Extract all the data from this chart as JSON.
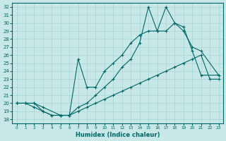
{
  "xlabel": "Humidex (Indice chaleur)",
  "background_color": "#c8e8e8",
  "line_color": "#006666",
  "grid_color": "#a8d4d4",
  "xlim": [
    -0.5,
    23.5
  ],
  "ylim": [
    17.5,
    32.5
  ],
  "xticks": [
    0,
    1,
    2,
    3,
    4,
    5,
    6,
    7,
    8,
    9,
    10,
    11,
    12,
    13,
    14,
    15,
    16,
    17,
    18,
    19,
    20,
    21,
    22,
    23
  ],
  "yticks": [
    18,
    19,
    20,
    21,
    22,
    23,
    24,
    25,
    26,
    27,
    28,
    29,
    30,
    31,
    32
  ],
  "line1_x": [
    0,
    1,
    2,
    3,
    4,
    5,
    6,
    7,
    8,
    9,
    10,
    11,
    12,
    13,
    14,
    15,
    16,
    17,
    18,
    19,
    20,
    21,
    22,
    23
  ],
  "line1_y": [
    20.0,
    20.0,
    20.0,
    19.0,
    18.5,
    18.5,
    18.5,
    19.0,
    19.5,
    20.0,
    20.5,
    21.0,
    21.5,
    22.0,
    22.5,
    23.0,
    23.5,
    24.0,
    24.5,
    25.0,
    25.5,
    26.0,
    23.0,
    23.0
  ],
  "line2_x": [
    0,
    1,
    2,
    3,
    5,
    6,
    7,
    8,
    9,
    10,
    11,
    12,
    13,
    14,
    15,
    16,
    17,
    18,
    19,
    20,
    21,
    23
  ],
  "line2_y": [
    20.0,
    20.0,
    20.0,
    19.5,
    18.5,
    18.5,
    25.5,
    22.0,
    22.0,
    24.0,
    25.0,
    26.0,
    27.5,
    28.5,
    29.0,
    29.0,
    29.0,
    30.0,
    29.0,
    27.0,
    26.5,
    23.5
  ],
  "line3_x": [
    0,
    1,
    2,
    3,
    4,
    5,
    6,
    7,
    8,
    9,
    10,
    11,
    12,
    13,
    14,
    15,
    16,
    17,
    18,
    19,
    20,
    21,
    23
  ],
  "line3_y": [
    20.0,
    20.0,
    19.5,
    19.0,
    18.5,
    18.5,
    18.5,
    19.5,
    20.0,
    21.0,
    22.0,
    23.0,
    24.5,
    25.5,
    27.5,
    32.0,
    29.0,
    32.0,
    30.0,
    29.5,
    26.5,
    23.5,
    23.5
  ]
}
